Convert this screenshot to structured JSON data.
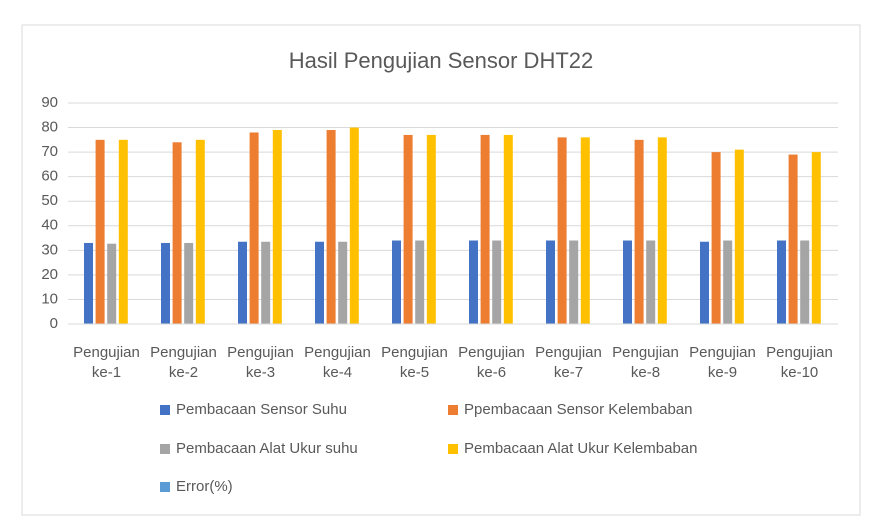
{
  "chart_data": {
    "type": "bar",
    "title": "Hasil Pengujian Sensor DHT22",
    "categories": [
      "Pengujian ke-1",
      "Pengujian ke-2",
      "Pengujian ke-3",
      "Pengujian ke-4",
      "Pengujian ke-5",
      "Pengujian ke-6",
      "Pengujian ke-7",
      "Pengujian ke-8",
      "Pengujian ke-9",
      "Pengujian ke-10"
    ],
    "series": [
      {
        "name": "Pembacaan Sensor Suhu",
        "color": "#4472c4",
        "values": [
          33,
          33,
          33.5,
          33.5,
          34,
          34,
          34,
          34,
          33.5,
          34
        ]
      },
      {
        "name": "Ppembacaan Sensor Kelembaban",
        "color": "#ed7d31",
        "values": [
          75,
          74,
          78,
          79,
          77,
          77,
          76,
          75,
          70,
          69
        ]
      },
      {
        "name": "Pembacaan Alat Ukur suhu",
        "color": "#a5a5a5",
        "values": [
          32.7,
          33,
          33.5,
          33.5,
          34,
          34,
          34,
          34,
          34,
          34
        ]
      },
      {
        "name": "Pembacaan Alat Ukur Kelembaban",
        "color": "#ffc000",
        "values": [
          75,
          75,
          79,
          80,
          77,
          77,
          76,
          76,
          71,
          70
        ]
      },
      {
        "name": "Error(%)",
        "color": "#5b9bd5",
        "values": [
          0,
          0,
          0,
          0,
          0,
          0,
          0,
          0,
          0,
          0
        ]
      }
    ],
    "ylim": [
      0,
      90
    ],
    "yticks": [
      0,
      10,
      20,
      30,
      40,
      50,
      60,
      70,
      80,
      90
    ],
    "grid": true
  }
}
